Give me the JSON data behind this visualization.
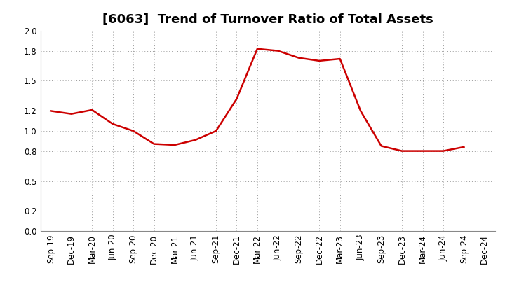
{
  "title": "[6063]  Trend of Turnover Ratio of Total Assets",
  "x_labels": [
    "Sep-19",
    "Dec-19",
    "Mar-20",
    "Jun-20",
    "Sep-20",
    "Dec-20",
    "Mar-21",
    "Jun-21",
    "Sep-21",
    "Dec-21",
    "Mar-22",
    "Jun-22",
    "Sep-22",
    "Dec-22",
    "Mar-23",
    "Jun-23",
    "Sep-23",
    "Dec-23",
    "Mar-24",
    "Jun-24",
    "Sep-24",
    "Dec-24"
  ],
  "y_values": [
    1.2,
    1.17,
    1.21,
    1.07,
    1.0,
    0.87,
    0.86,
    0.91,
    1.0,
    1.32,
    1.82,
    1.8,
    1.73,
    1.7,
    1.72,
    1.2,
    0.85,
    0.8,
    0.8,
    0.8,
    0.84,
    null
  ],
  "line_color": "#cc0000",
  "line_width": 1.8,
  "ylim": [
    0.0,
    2.0
  ],
  "yticks": [
    0.0,
    0.2,
    0.5,
    0.8,
    1.0,
    1.2,
    1.5,
    1.8,
    2.0
  ],
  "background_color": "#ffffff",
  "grid_color": "#999999",
  "title_fontsize": 13,
  "tick_fontsize": 8.5
}
